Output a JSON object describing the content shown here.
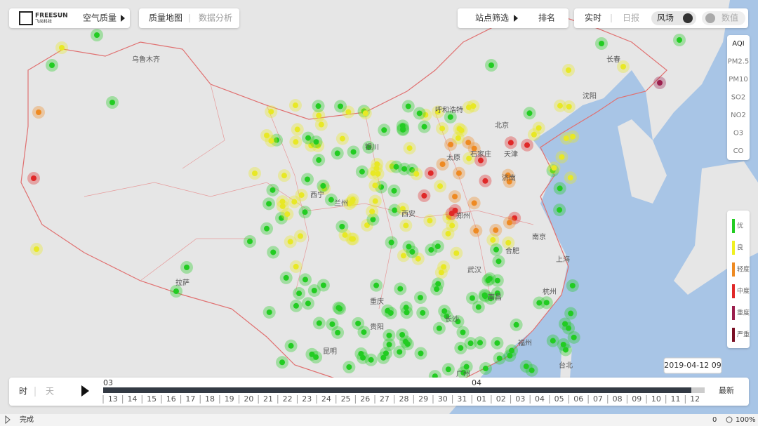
{
  "header": {
    "logo": "FREESUN",
    "logo_sub": "飞尚科技",
    "menu": "空气质量",
    "tabs": [
      "质量地图",
      "数据分析"
    ],
    "station_filter": "站点筛选",
    "ranking": "排名",
    "mode": [
      "实时",
      "日报"
    ],
    "toggles": [
      "风场",
      "数值"
    ]
  },
  "pollutants": [
    "AQI",
    "PM2.5",
    "PM10",
    "SO2",
    "NO2",
    "O3",
    "CO"
  ],
  "legend": [
    "优",
    "良",
    "轻度",
    "中度",
    "重度",
    "严重"
  ],
  "cities": [
    "乌鲁木齐",
    "呼和浩特",
    "北京",
    "天津",
    "石家庄",
    "太原",
    "济南",
    "西宁",
    "兰州",
    "银川",
    "西安",
    "郑州",
    "合肥",
    "南京",
    "上海",
    "武汉",
    "杭州",
    "南昌",
    "长沙",
    "重庆",
    "贵阳",
    "拉萨",
    "昆明",
    "福州",
    "台北",
    "广州",
    "沈阳",
    "长春"
  ],
  "timeline": {
    "units": [
      "时",
      "天"
    ],
    "months": [
      "03",
      "04"
    ],
    "days": [
      "13",
      "14",
      "15",
      "16",
      "17",
      "18",
      "19",
      "20",
      "21",
      "22",
      "23",
      "24",
      "25",
      "26",
      "27",
      "28",
      "29",
      "30",
      "31",
      "01",
      "02",
      "03",
      "04",
      "05",
      "06",
      "07",
      "08",
      "09",
      "10",
      "11",
      "12"
    ],
    "latest": "最新",
    "current": "2019-04-12 09"
  },
  "status": {
    "text": "完成",
    "count": "0",
    "zoom": "100%"
  }
}
